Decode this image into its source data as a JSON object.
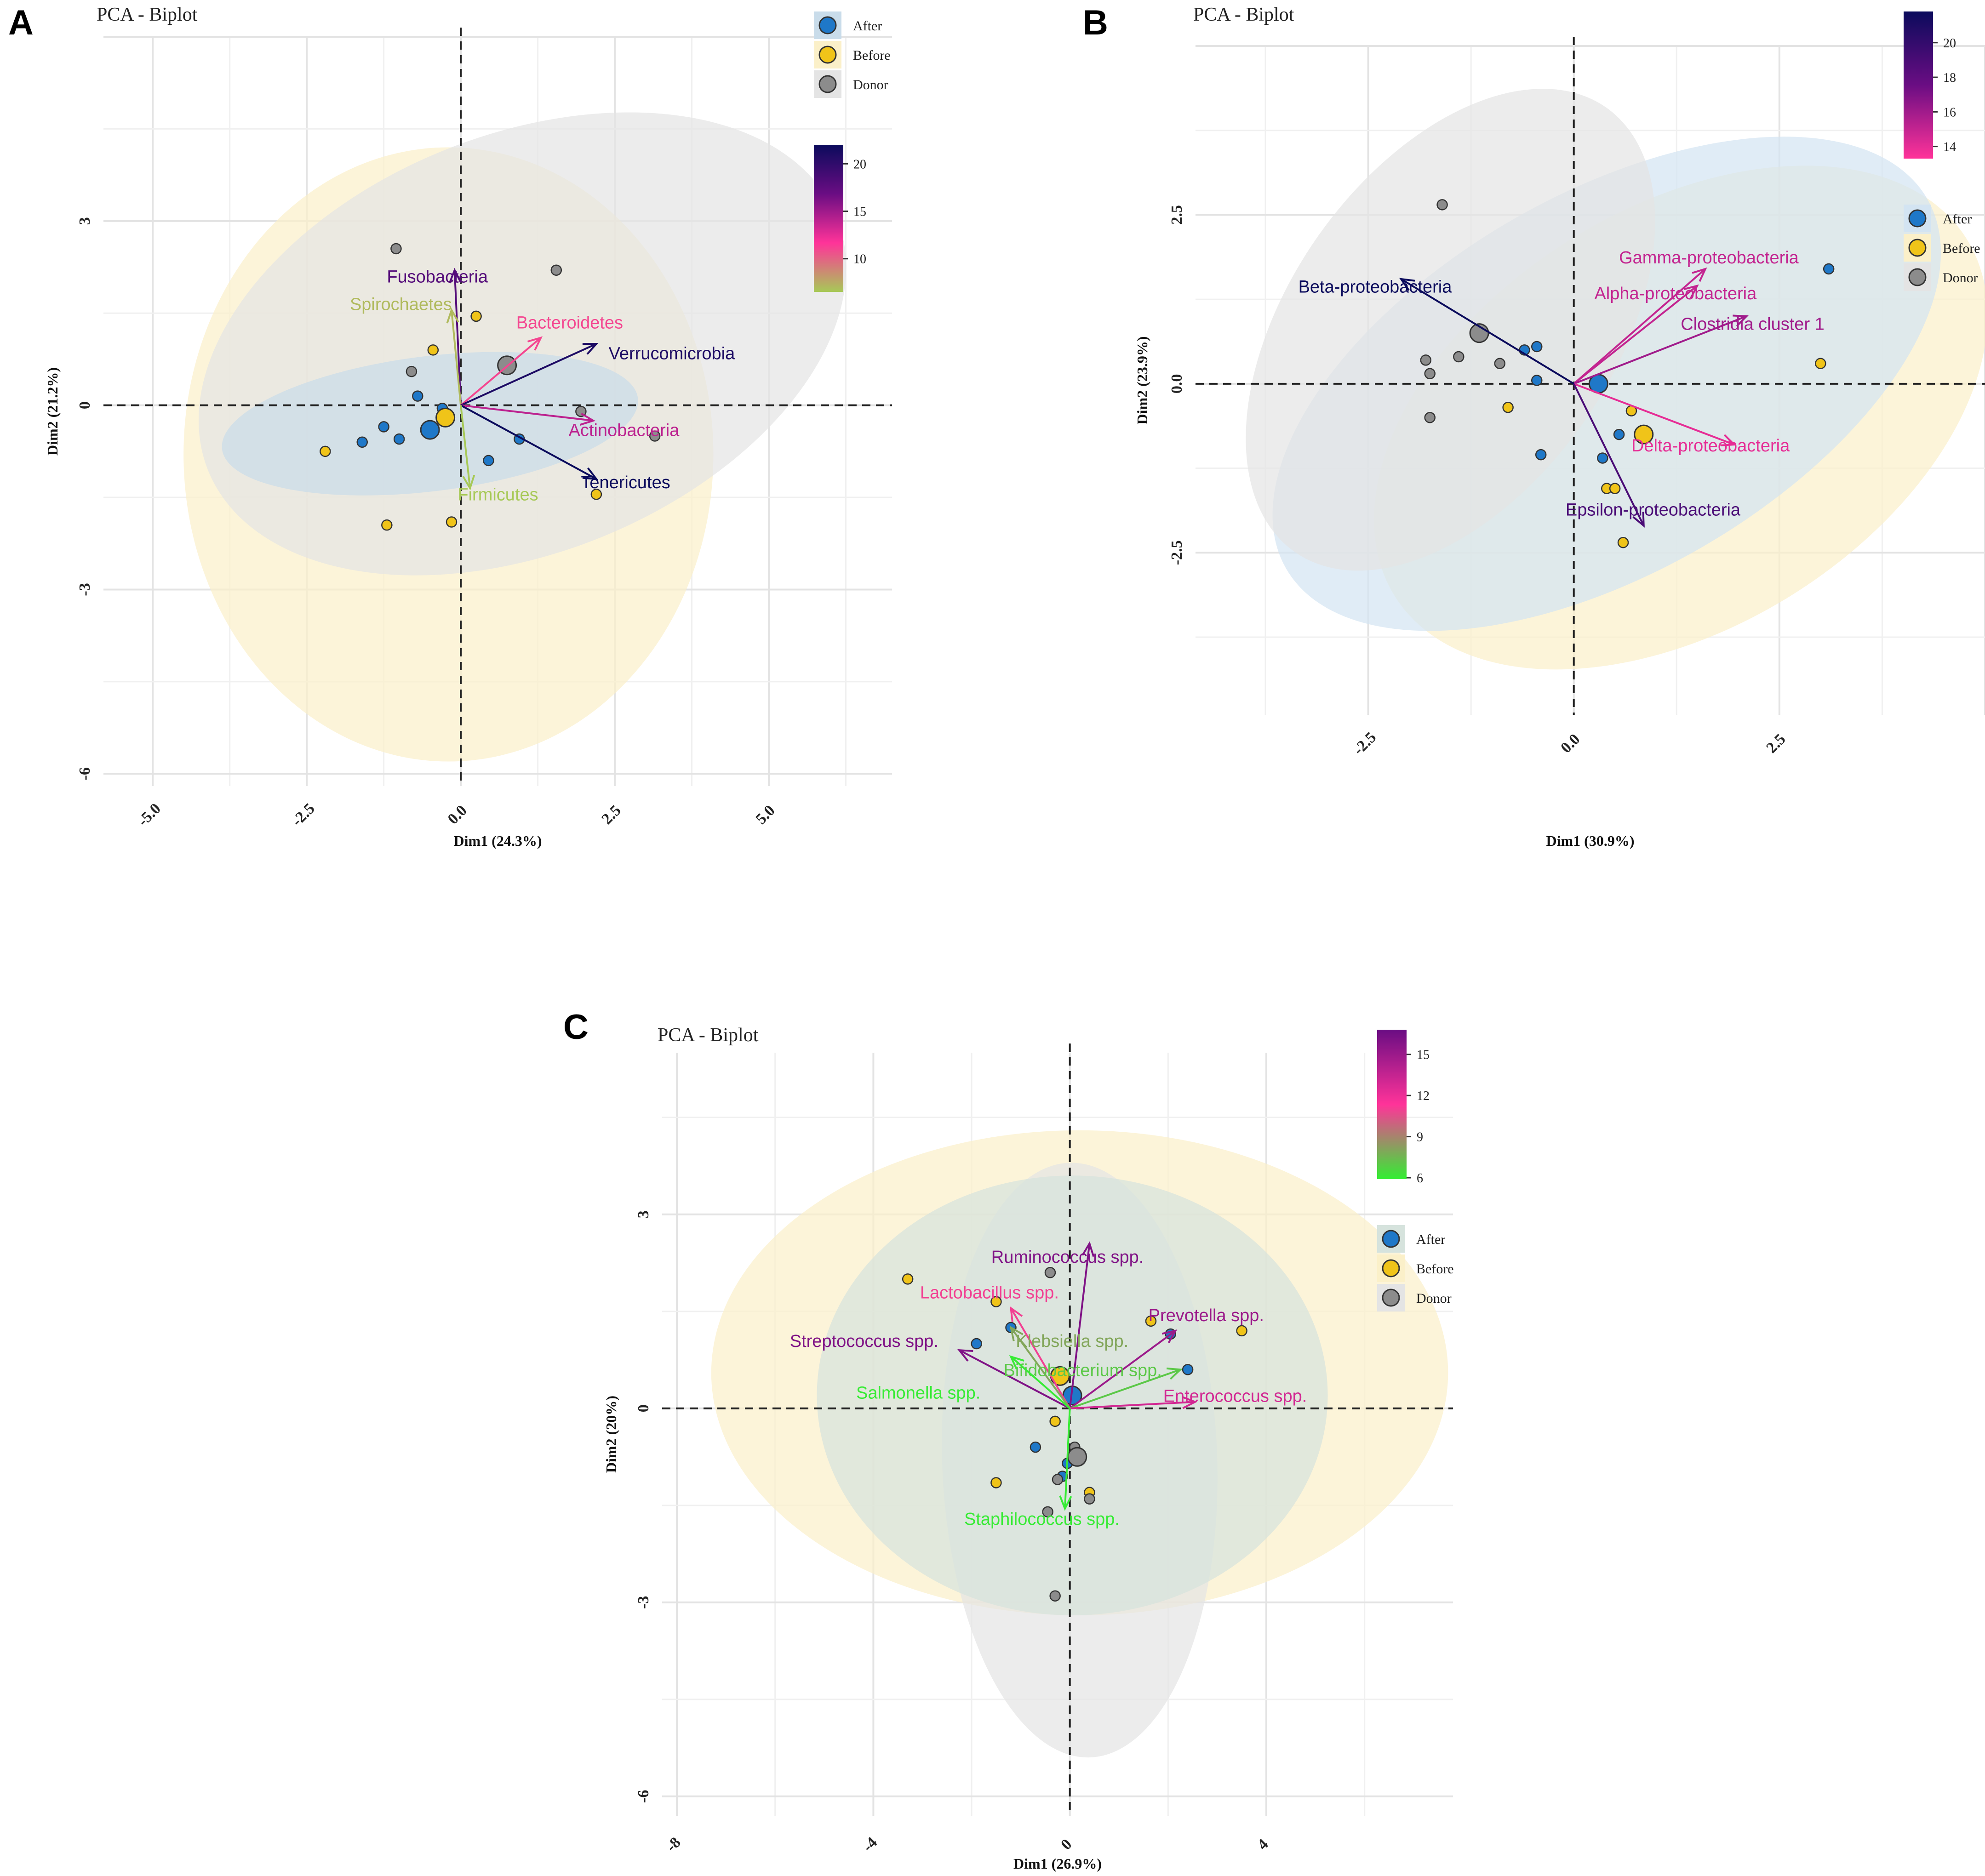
{
  "panels": [
    {
      "id": "A",
      "chart_data": {
        "type": "scatter",
        "panel_letter": "A",
        "title": "PCA - Biplot",
        "xlabel": "Dim1 (24.3%)",
        "ylabel": "Dim2 (21.2%)",
        "xlim": [
          -5.8,
          7.0
        ],
        "ylim": [
          -6.2,
          6.0
        ],
        "xticks": [
          -5.0,
          -2.5,
          0,
          2.5,
          5.0
        ],
        "xtick_labels": [
          "-5.0",
          "-2.5",
          "0.0",
          "2.5",
          "5.0"
        ],
        "yticks": [
          -6,
          -3,
          0,
          3
        ],
        "ytick_labels": [
          "-6",
          "-3",
          "0",
          "3"
        ],
        "groups": [
          "After",
          "Before",
          "Donor"
        ],
        "group_colors": {
          "After": "#1f78c8",
          "Before": "#f0c419",
          "Donor": "#8c8c8c"
        },
        "ellipse_fills": {
          "After": "#c9dcea",
          "Before": "#fbf0c9",
          "Donor": "#e4e4e4"
        },
        "ellipses": [
          {
            "group": "Before",
            "cx": -0.2,
            "cy": -0.8,
            "rx": 4.3,
            "ry": 5.0,
            "angle": 0
          },
          {
            "group": "Donor",
            "cx": 1.0,
            "cy": 1.0,
            "rx": 5.5,
            "ry": 3.4,
            "angle": -22
          },
          {
            "group": "After",
            "cx": -0.5,
            "cy": -0.3,
            "rx": 3.4,
            "ry": 1.1,
            "angle": -7
          }
        ],
        "points": [
          {
            "group": "After",
            "x": -1.6,
            "y": -0.6
          },
          {
            "group": "After",
            "x": -1.25,
            "y": -0.35
          },
          {
            "group": "After",
            "x": -1.0,
            "y": -0.55
          },
          {
            "group": "After",
            "x": -0.7,
            "y": 0.15
          },
          {
            "group": "After",
            "x": -0.3,
            "y": -0.05
          },
          {
            "group": "After",
            "x": 0.45,
            "y": -0.9
          },
          {
            "group": "After",
            "x": 0.95,
            "y": -0.55
          },
          {
            "group": "Before",
            "x": -2.2,
            "y": -0.75
          },
          {
            "group": "Before",
            "x": -1.2,
            "y": -1.95
          },
          {
            "group": "Before",
            "x": -0.45,
            "y": 0.9
          },
          {
            "group": "Before",
            "x": 0.25,
            "y": 1.45
          },
          {
            "group": "Before",
            "x": -0.15,
            "y": -1.9
          },
          {
            "group": "Before",
            "x": 2.2,
            "y": -1.45
          },
          {
            "group": "Donor",
            "x": -1.05,
            "y": 2.55
          },
          {
            "group": "Donor",
            "x": -0.8,
            "y": 0.55
          },
          {
            "group": "Donor",
            "x": 1.55,
            "y": 2.2
          },
          {
            "group": "Donor",
            "x": 1.95,
            "y": -0.1
          },
          {
            "group": "Donor",
            "x": 3.15,
            "y": -0.5
          }
        ],
        "centroids": [
          {
            "group": "After",
            "x": -0.5,
            "y": -0.4
          },
          {
            "group": "Before",
            "x": -0.25,
            "y": -0.2
          },
          {
            "group": "Donor",
            "x": 0.75,
            "y": 0.65
          }
        ],
        "arrows": [
          {
            "name": "Fusobacteria",
            "x": -0.1,
            "y": 2.2,
            "contrib": 18,
            "lx": -1.2,
            "ly": 2.0
          },
          {
            "name": "Spirochaetes",
            "x": -0.15,
            "y": 1.55,
            "contrib": 7,
            "lx": -1.8,
            "ly": 1.55
          },
          {
            "name": "Bacteroidetes",
            "x": 1.3,
            "y": 1.1,
            "contrib": 11,
            "lx": 0.9,
            "ly": 1.25
          },
          {
            "name": "Verrucomicrobia",
            "x": 2.2,
            "y": 1.0,
            "contrib": 21,
            "lx": 2.4,
            "ly": 0.75
          },
          {
            "name": "Actinobacteria",
            "x": 2.15,
            "y": -0.25,
            "contrib": 14,
            "lx": 1.75,
            "ly": -0.5
          },
          {
            "name": "Tenericutes",
            "x": 2.2,
            "y": -1.2,
            "contrib": 22,
            "lx": 1.95,
            "ly": -1.35
          },
          {
            "name": "Firmicutes",
            "x": 0.15,
            "y": -1.35,
            "contrib": 6,
            "lx": -0.05,
            "ly": -1.55
          }
        ],
        "legend": {
          "labels": [
            "After",
            "Before",
            "Donor"
          ],
          "position": "top-right"
        },
        "colorbar": {
          "ticks": [
            10,
            15,
            20
          ],
          "tick_labels": [
            "10",
            "15",
            "20"
          ],
          "min": 6.5,
          "max": 22,
          "stops": [
            "#a7c957",
            "#ff3399",
            "#6a0d83",
            "#0b0b5c"
          ]
        }
      }
    },
    {
      "id": "B",
      "chart_data": {
        "type": "scatter",
        "panel_letter": "B",
        "title": "PCA - Biplot",
        "xlabel": "Dim1 (30.9%)",
        "ylabel": "Dim2 (23.9%)",
        "xlim": [
          -4.6,
          5.0
        ],
        "ylim": [
          -4.9,
          5.0
        ],
        "xticks": [
          -2.5,
          0,
          2.5
        ],
        "xtick_labels": [
          "-2.5",
          "0.0",
          "2.5"
        ],
        "yticks": [
          -2.5,
          0,
          2.5
        ],
        "ytick_labels": [
          "-2.5",
          "0.0",
          "2.5"
        ],
        "groups": [
          "After",
          "Before",
          "Donor"
        ],
        "group_colors": {
          "After": "#1f78c8",
          "Before": "#f0c419",
          "Donor": "#8c8c8c"
        },
        "ellipse_fills": {
          "After": "#d3e4f2",
          "Before": "#fbf0c9",
          "Donor": "#e4e4e4"
        },
        "ellipses": [
          {
            "group": "Before",
            "cx": 1.3,
            "cy": -0.5,
            "rx": 4.1,
            "ry": 3.1,
            "angle": -32
          },
          {
            "group": "After",
            "cx": 0.4,
            "cy": 0.0,
            "rx": 4.5,
            "ry": 2.8,
            "angle": -30
          },
          {
            "group": "Donor",
            "cx": -1.5,
            "cy": 0.8,
            "rx": 3.3,
            "ry": 2.4,
            "angle": -55
          }
        ],
        "points": [
          {
            "group": "After",
            "x": -0.6,
            "y": 0.5
          },
          {
            "group": "After",
            "x": -0.45,
            "y": 0.55
          },
          {
            "group": "After",
            "x": -0.45,
            "y": 0.05
          },
          {
            "group": "After",
            "x": -0.4,
            "y": -1.05
          },
          {
            "group": "After",
            "x": 0.35,
            "y": -1.1
          },
          {
            "group": "After",
            "x": 0.55,
            "y": -0.75
          },
          {
            "group": "After",
            "x": 3.1,
            "y": 1.7
          },
          {
            "group": "Before",
            "x": -0.8,
            "y": -0.35
          },
          {
            "group": "Before",
            "x": 0.7,
            "y": -0.4
          },
          {
            "group": "Before",
            "x": 0.4,
            "y": -1.55
          },
          {
            "group": "Before",
            "x": 0.5,
            "y": -1.55
          },
          {
            "group": "Before",
            "x": 0.6,
            "y": -2.35
          },
          {
            "group": "Before",
            "x": 3.0,
            "y": 0.3
          },
          {
            "group": "Donor",
            "x": -1.6,
            "y": 2.65
          },
          {
            "group": "Donor",
            "x": -1.8,
            "y": 0.35
          },
          {
            "group": "Donor",
            "x": -1.75,
            "y": 0.15
          },
          {
            "group": "Donor",
            "x": -1.4,
            "y": 0.4
          },
          {
            "group": "Donor",
            "x": -0.9,
            "y": 0.3
          },
          {
            "group": "Donor",
            "x": -1.75,
            "y": -0.5
          }
        ],
        "centroids": [
          {
            "group": "After",
            "x": 0.3,
            "y": 0.0
          },
          {
            "group": "Before",
            "x": 0.85,
            "y": -0.75
          },
          {
            "group": "Donor",
            "x": -1.15,
            "y": 0.75
          }
        ],
        "arrows": [
          {
            "name": "Gamma-proteobacteria",
            "x": 1.6,
            "y": 1.7,
            "contrib": 15,
            "lx": 0.55,
            "ly": 1.78
          },
          {
            "name": "Alpha-proteobacteria",
            "x": 1.5,
            "y": 1.45,
            "contrib": 15,
            "lx": 0.25,
            "ly": 1.25
          },
          {
            "name": "Clostridia cluster 1",
            "x": 2.1,
            "y": 1.0,
            "contrib": 16,
            "lx": 1.3,
            "ly": 0.8
          },
          {
            "name": "Beta-proteobacteria",
            "x": -2.1,
            "y": 1.55,
            "contrib": 22,
            "lx": -3.35,
            "ly": 1.35
          },
          {
            "name": "Delta-proteobacteria",
            "x": 1.95,
            "y": -0.9,
            "contrib": 14,
            "lx": 0.7,
            "ly": -1.0
          },
          {
            "name": "Epsilon-proteobacteria",
            "x": 0.85,
            "y": -2.1,
            "contrib": 19,
            "lx": -0.1,
            "ly": -1.95
          }
        ],
        "legend": {
          "labels": [
            "After",
            "Before",
            "Donor"
          ],
          "position": "right"
        },
        "colorbar": {
          "ticks": [
            14,
            16,
            18,
            20
          ],
          "tick_labels": [
            "14",
            "16",
            "18",
            "20"
          ],
          "min": 13.3,
          "max": 21.8,
          "stops": [
            "#ff3399",
            "#6a0d83",
            "#0b0b5c"
          ]
        }
      }
    },
    {
      "id": "C",
      "chart_data": {
        "type": "scatter",
        "panel_letter": "C",
        "title": "PCA - Biplot",
        "xlabel": "Dim1 (26.9%)",
        "ylabel": "Dim2 (20%)",
        "xlim": [
          -8.3,
          7.8
        ],
        "ylim": [
          -6.3,
          5.5
        ],
        "xticks": [
          -8,
          -4,
          0,
          4
        ],
        "xtick_labels": [
          "-8",
          "-4",
          "0",
          "4"
        ],
        "yticks": [
          -6,
          -3,
          0,
          3
        ],
        "ytick_labels": [
          "-6",
          "-3",
          "0",
          "3"
        ],
        "groups": [
          "After",
          "Before",
          "Donor"
        ],
        "group_colors": {
          "After": "#1f78c8",
          "Before": "#f0c419",
          "Donor": "#8c8c8c"
        },
        "ellipse_fills": {
          "After": "#d6e3dd",
          "Before": "#fbf0c9",
          "Donor": "#e4e4e4"
        },
        "ellipses": [
          {
            "group": "Before",
            "cx": 0.2,
            "cy": 0.55,
            "rx": 7.5,
            "ry": 3.75,
            "angle": 0
          },
          {
            "group": "Donor",
            "cx": 0.2,
            "cy": -0.8,
            "rx": 2.8,
            "ry": 4.6,
            "angle": -2
          },
          {
            "group": "After",
            "cx": 0.05,
            "cy": 0.2,
            "rx": 5.2,
            "ry": 3.4,
            "angle": 0
          }
        ],
        "points": [
          {
            "group": "After",
            "x": -1.9,
            "y": 1.0
          },
          {
            "group": "After",
            "x": -1.2,
            "y": 1.25
          },
          {
            "group": "After",
            "x": 2.05,
            "y": 1.15
          },
          {
            "group": "After",
            "x": 2.4,
            "y": 0.6
          },
          {
            "group": "After",
            "x": -0.7,
            "y": -0.6
          },
          {
            "group": "After",
            "x": -0.05,
            "y": -0.85
          },
          {
            "group": "After",
            "x": -0.15,
            "y": -1.05
          },
          {
            "group": "Before",
            "x": -3.3,
            "y": 2.0
          },
          {
            "group": "Before",
            "x": -1.5,
            "y": 1.65
          },
          {
            "group": "Before",
            "x": 1.65,
            "y": 1.35
          },
          {
            "group": "Before",
            "x": 3.5,
            "y": 1.2
          },
          {
            "group": "Before",
            "x": -0.3,
            "y": -0.2
          },
          {
            "group": "Before",
            "x": -1.5,
            "y": -1.15
          },
          {
            "group": "Before",
            "x": 0.4,
            "y": -1.3
          },
          {
            "group": "Donor",
            "x": -0.4,
            "y": 2.1
          },
          {
            "group": "Donor",
            "x": 0.1,
            "y": -0.6
          },
          {
            "group": "Donor",
            "x": -0.25,
            "y": -1.1
          },
          {
            "group": "Donor",
            "x": 0.4,
            "y": -1.4
          },
          {
            "group": "Donor",
            "x": -0.45,
            "y": -1.6
          },
          {
            "group": "Donor",
            "x": -0.3,
            "y": -2.9
          }
        ],
        "centroids": [
          {
            "group": "After",
            "x": 0.05,
            "y": 0.2
          },
          {
            "group": "Before",
            "x": -0.2,
            "y": 0.5
          },
          {
            "group": "Donor",
            "x": 0.15,
            "y": -0.75
          }
        ],
        "arrows": [
          {
            "name": "Ruminococcus spp.",
            "x": 0.4,
            "y": 2.55,
            "contrib": 16,
            "lx": -1.6,
            "ly": 2.25
          },
          {
            "name": "Lactobacillus spp.",
            "x": -1.2,
            "y": 1.55,
            "contrib": 11,
            "lx": -3.05,
            "ly": 1.7
          },
          {
            "name": "Prevotella spp.",
            "x": 2.15,
            "y": 1.2,
            "contrib": 15,
            "lx": 1.6,
            "ly": 1.35
          },
          {
            "name": "Streptococcus spp.",
            "x": -2.25,
            "y": 0.9,
            "contrib": 16,
            "lx": -5.7,
            "ly": 0.95
          },
          {
            "name": "Klebsiella spp.",
            "x": -1.2,
            "y": 1.25,
            "contrib": 8,
            "lx": -1.1,
            "ly": 0.95
          },
          {
            "name": "Bifidobacterium spp.",
            "x": 2.25,
            "y": 0.6,
            "contrib": 7,
            "lx": -1.35,
            "ly": 0.5
          },
          {
            "name": "Salmonella spp.",
            "x": -1.2,
            "y": 0.8,
            "contrib": 6,
            "lx": -4.35,
            "ly": 0.15
          },
          {
            "name": "Enterococcus spp.",
            "x": 2.55,
            "y": 0.1,
            "contrib": 13,
            "lx": 1.9,
            "ly": 0.1
          },
          {
            "name": "Staphilococcus spp.",
            "x": -0.1,
            "y": -1.55,
            "contrib": 6,
            "lx": -2.15,
            "ly": -1.8
          }
        ],
        "legend": {
          "labels": [
            "After",
            "Before",
            "Donor"
          ],
          "position": "right"
        },
        "colorbar": {
          "ticks": [
            6,
            9,
            12,
            15
          ],
          "tick_labels": [
            "6",
            "9",
            "12",
            "15"
          ],
          "min": 5.9,
          "max": 16.8,
          "stops": [
            "#33ee33",
            "#ff3399",
            "#6a0d83"
          ]
        }
      }
    }
  ]
}
